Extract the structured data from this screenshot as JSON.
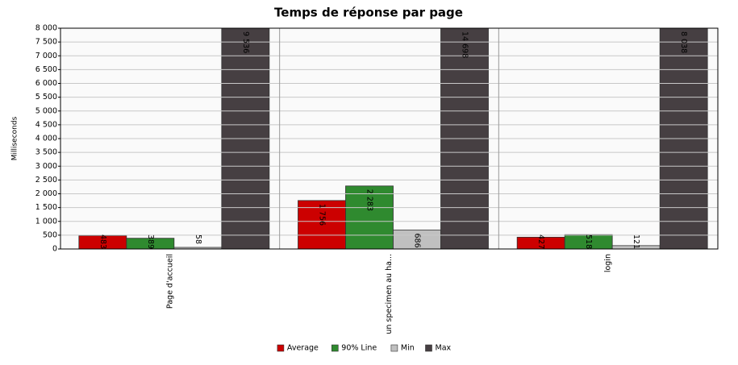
{
  "chart_data": {
    "type": "bar",
    "title": "Temps de réponse par page",
    "y_label": "Milliseconds",
    "categories": [
      "Page d'accueil",
      "un specimen au ha...",
      "login"
    ],
    "series": [
      {
        "name": "Average",
        "color": "#cc0000",
        "values": [
          483,
          1756,
          427
        ],
        "value_labels": [
          "483",
          "1 756",
          "427"
        ]
      },
      {
        "name": "90% Line",
        "color": "#2f8a2f",
        "values": [
          389,
          2283,
          518
        ],
        "value_labels": [
          "389",
          "2 283",
          "518"
        ]
      },
      {
        "name": "Min",
        "color": "#c0c0c0",
        "values": [
          58,
          686,
          121
        ],
        "value_labels": [
          "58",
          "686",
          "121"
        ]
      },
      {
        "name": "Max",
        "color": "#463f42",
        "values": [
          9536,
          14698,
          8038
        ],
        "value_labels": [
          "9 536",
          "14 698",
          "8 038"
        ]
      }
    ],
    "ylim": [
      0,
      8000
    ],
    "yticks": [
      0,
      500,
      {
        "value": 1000,
        "label": "1 000"
      },
      {
        "value": 1500,
        "label": "1 500"
      },
      {
        "value": 2000,
        "label": "2 000"
      },
      {
        "value": 2500,
        "label": "2 500"
      },
      {
        "value": 3000,
        "label": "3 000"
      },
      {
        "value": 3500,
        "label": "3 500"
      },
      {
        "value": 4000,
        "label": "4 000"
      },
      {
        "value": 4500,
        "label": "4 500"
      },
      {
        "value": 5000,
        "label": "5 000"
      },
      {
        "value": 5500,
        "label": "5 500"
      },
      {
        "value": 6000,
        "label": "6 000"
      },
      {
        "value": 6500,
        "label": "6 500"
      },
      {
        "value": 7000,
        "label": "7 000"
      },
      {
        "value": 7500,
        "label": "7 500"
      },
      {
        "value": 8000,
        "label": "8 000"
      }
    ],
    "grid": true,
    "legend": "bottom"
  }
}
